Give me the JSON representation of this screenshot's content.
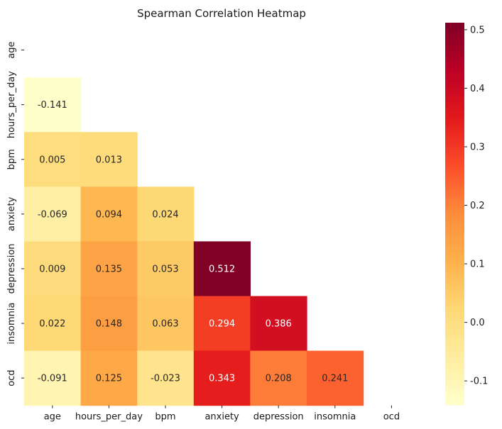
{
  "chart_data": {
    "type": "heatmap",
    "title": "Spearman Correlation Heatmap",
    "variables": [
      "age",
      "hours_per_day",
      "bpm",
      "anxiety",
      "depression",
      "insomnia",
      "ocd"
    ],
    "mask": "upper-triangle-and-diagonal",
    "matrix": [
      [
        null,
        null,
        null,
        null,
        null,
        null,
        null
      ],
      [
        -0.141,
        null,
        null,
        null,
        null,
        null,
        null
      ],
      [
        0.005,
        0.013,
        null,
        null,
        null,
        null,
        null
      ],
      [
        -0.069,
        0.094,
        0.024,
        null,
        null,
        null,
        null
      ],
      [
        0.009,
        0.135,
        0.053,
        0.512,
        null,
        null,
        null
      ],
      [
        0.022,
        0.148,
        0.063,
        0.294,
        0.386,
        null,
        null
      ],
      [
        -0.091,
        0.125,
        -0.023,
        0.343,
        0.208,
        0.241,
        null
      ]
    ],
    "cell_labels": [
      [
        null,
        null,
        null,
        null,
        null,
        null,
        null
      ],
      [
        "-0.141",
        null,
        null,
        null,
        null,
        null,
        null
      ],
      [
        "0.005",
        "0.013",
        null,
        null,
        null,
        null,
        null
      ],
      [
        "-0.069",
        "0.094",
        "0.024",
        null,
        null,
        null,
        null
      ],
      [
        "0.009",
        "0.135",
        "0.053",
        "0.512",
        null,
        null,
        null
      ],
      [
        "0.022",
        "0.148",
        "0.063",
        "0.294",
        "0.386",
        null,
        null
      ],
      [
        "-0.091",
        "0.125",
        "-0.023",
        "0.343",
        "0.208",
        "0.241",
        null
      ]
    ],
    "colormap": "YlOrRd",
    "colormap_stops": [
      "#ffffcc",
      "#ffeda0",
      "#fed976",
      "#feb24c",
      "#fd8d3c",
      "#fc4e2a",
      "#e31a1c",
      "#bd0026",
      "#800026"
    ],
    "vmin": -0.141,
    "vmax": 0.512,
    "colorbar_ticks": [
      "-0.1",
      "0.0",
      "0.1",
      "0.2",
      "0.3",
      "0.4",
      "0.5"
    ],
    "annotation_dark_color": "#262626",
    "annotation_light_color": "#ffffff"
  }
}
